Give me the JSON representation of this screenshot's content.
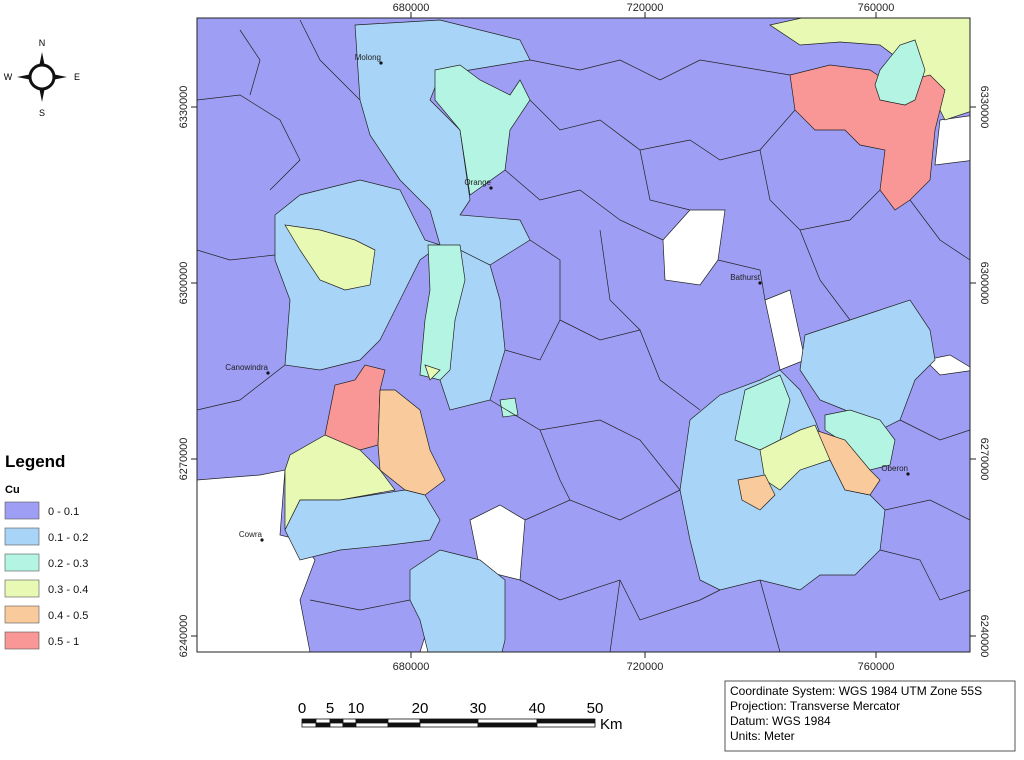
{
  "compass": {
    "n": "N",
    "s": "S",
    "e": "E",
    "w": "W"
  },
  "legend": {
    "title": "Legend",
    "field": "Cu",
    "items": [
      {
        "label": "0 - 0.1",
        "color": "#9e9ef5"
      },
      {
        "label": "0.1 - 0.2",
        "color": "#a8d5f7"
      },
      {
        "label": "0.2 - 0.3",
        "color": "#b3f5e2"
      },
      {
        "label": "0.3 - 0.4",
        "color": "#e8f9b4"
      },
      {
        "label": "0.4 - 0.5",
        "color": "#f9cb9c"
      },
      {
        "label": "0.5 - 1",
        "color": "#f99696"
      }
    ]
  },
  "map": {
    "x_ticks": [
      "680000",
      "720000",
      "760000"
    ],
    "y_ticks": [
      "6330000",
      "6300000",
      "6270000",
      "6240000"
    ],
    "places": [
      "Molong",
      "Orange",
      "Bathurst",
      "Canowindra",
      "Oberon",
      "Cowra"
    ]
  },
  "scale_bar": {
    "labels": [
      "0",
      "5",
      "10",
      "20",
      "30",
      "40",
      "50"
    ],
    "unit": "Km"
  },
  "info": [
    "Coordinate System: WGS 1984 UTM Zone 55S",
    "Projection: Transverse Mercator",
    "Datum: WGS 1984",
    "Units: Meter"
  ]
}
